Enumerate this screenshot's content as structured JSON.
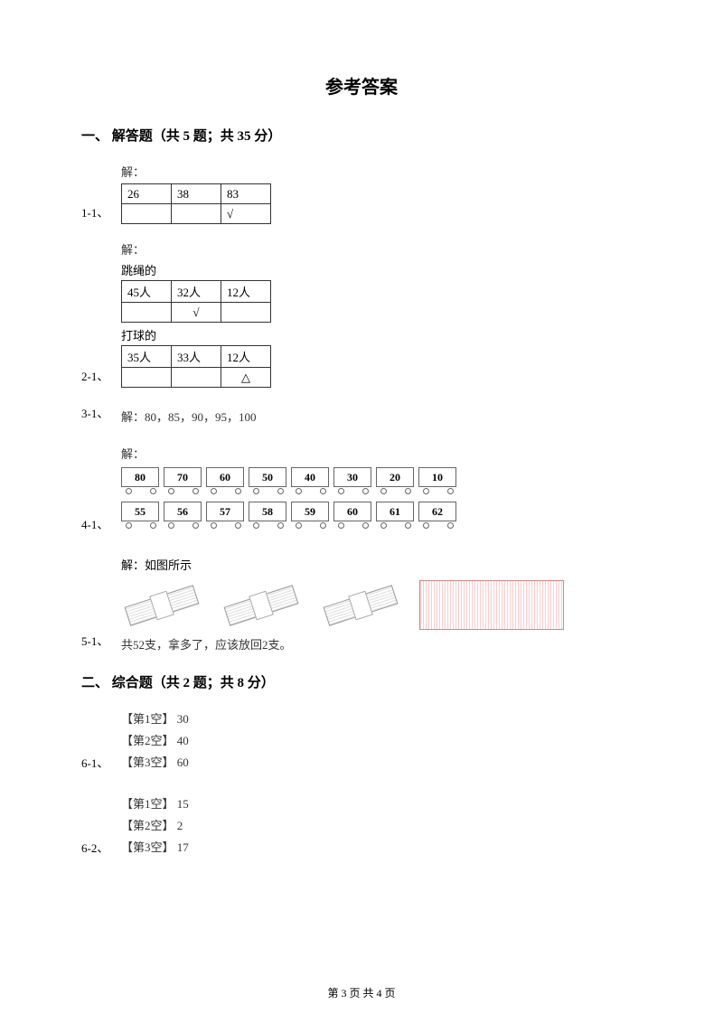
{
  "page_title": "参考答案",
  "section1": {
    "header": "一、 解答题（共 5 题；共 35 分）",
    "q1": {
      "num": "1-1、",
      "label": "解：",
      "row1": [
        "26",
        "38",
        "83"
      ],
      "row2": [
        "",
        "",
        "√"
      ]
    },
    "q2": {
      "num": "2-1、",
      "label": "解：",
      "t1_label": "跳绳的",
      "t1_row1": [
        "45人",
        "32人",
        "12人"
      ],
      "t1_row2": [
        "",
        "√",
        ""
      ],
      "t2_label": "打球的",
      "t2_row1": [
        "35人",
        "33人",
        "12人"
      ],
      "t2_row2": [
        "",
        "",
        "△"
      ]
    },
    "q3": {
      "num": "3-1、",
      "text": "解：80，85，90，95，100"
    },
    "q4": {
      "num": "4-1、",
      "label": "解：",
      "train1": [
        "80",
        "70",
        "60",
        "50",
        "40",
        "30",
        "20",
        "10"
      ],
      "train2": [
        "55",
        "56",
        "57",
        "58",
        "59",
        "60",
        "61",
        "62"
      ]
    },
    "q5": {
      "num": "5-1、",
      "label": "解：如图所示",
      "text": "共52支，拿多了，应该放回2支。"
    }
  },
  "section2": {
    "header": "二、 综合题（共 2 题；共 8 分）",
    "q6_1": {
      "num": "6-1、",
      "blanks": [
        {
          "label": "【第1空】",
          "value": "30"
        },
        {
          "label": "【第2空】",
          "value": "40"
        },
        {
          "label": "【第3空】",
          "value": "60"
        }
      ]
    },
    "q6_2": {
      "num": "6-2、",
      "blanks": [
        {
          "label": "【第1空】",
          "value": "15"
        },
        {
          "label": "【第2空】",
          "value": "2"
        },
        {
          "label": "【第3空】",
          "value": "17"
        }
      ]
    }
  },
  "footer": "第 3 页 共 4 页"
}
